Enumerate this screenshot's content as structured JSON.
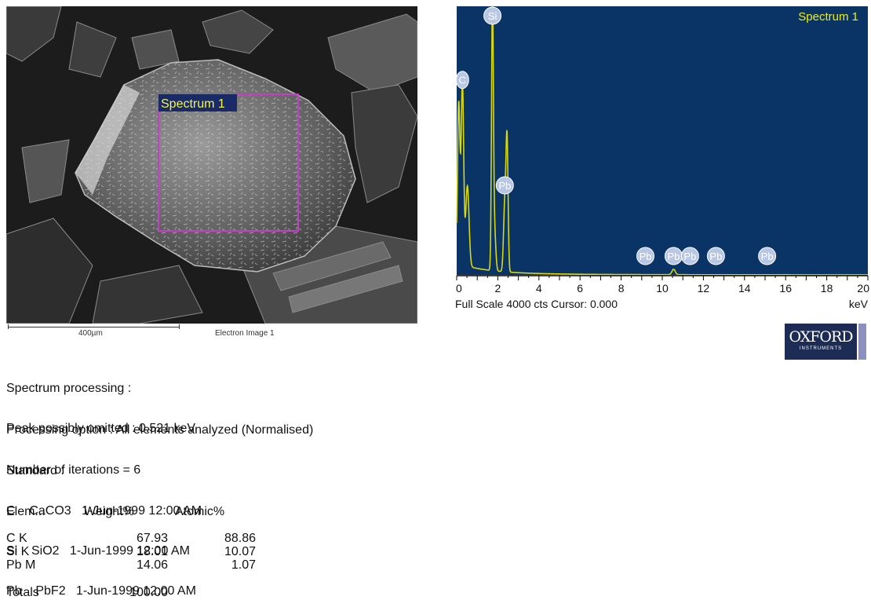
{
  "sem": {
    "box_label": "Spectrum 1",
    "scale_label": "400µm",
    "image_label": "Electron Image 1"
  },
  "chart_data": {
    "type": "line",
    "title": "Spectrum 1",
    "xlabel": "keV",
    "footer": "Full Scale 4000 cts Cursor: 0.000",
    "xlim": [
      0,
      20
    ],
    "ylim": [
      0,
      4000
    ],
    "x_ticks": [
      0,
      2,
      4,
      6,
      8,
      10,
      12,
      14,
      16,
      18,
      20
    ],
    "background_color": "#0a3366",
    "line_color": "#d8d80a",
    "label_color": "#f0f000",
    "peaks": [
      {
        "x": 0.1,
        "y": 2400,
        "w": 0.06
      },
      {
        "x": 0.28,
        "y": 2700,
        "w": 0.06
      },
      {
        "x": 0.52,
        "y": 1200,
        "w": 0.08
      },
      {
        "x": 1.74,
        "y": 3950,
        "w": 0.045
      },
      {
        "x": 1.84,
        "y": 600,
        "w": 0.06
      },
      {
        "x": 2.34,
        "y": 1000,
        "w": 0.06
      },
      {
        "x": 2.45,
        "y": 1900,
        "w": 0.05
      },
      {
        "x": 10.55,
        "y": 80,
        "w": 0.08
      }
    ],
    "peak_labels": [
      {
        "text": "C",
        "x": 0.28
      },
      {
        "text": "Si",
        "x": 1.74
      },
      {
        "text": "Pb",
        "x": 2.34
      },
      {
        "text": "Pb",
        "x": 9.18
      },
      {
        "text": "Pb",
        "x": 10.55
      },
      {
        "text": "Pb",
        "x": 11.35
      },
      {
        "text": "Pb",
        "x": 12.61
      },
      {
        "text": "Pb",
        "x": 15.1
      }
    ]
  },
  "logo": {
    "main": "OXFORD",
    "sub": "INSTRUMENTS"
  },
  "report": {
    "processing_title": "Spectrum processing :",
    "peak_omitted": "Peak possibly omitted : 0.521 keV",
    "option": "Processing option : All elements analyzed (Normalised)",
    "iterations": "Number of iterations = 6",
    "standard_title": "Standard :",
    "standards": [
      "C    CaCO3   1-Jun-1999 12:00 AM",
      "Si    SiO2   1-Jun-1999 12:00 AM",
      "Pb    PbF2   1-Jun-1999 12:00 AM"
    ],
    "table": {
      "headers": [
        "Elem...",
        "Weight%",
        "Atomic%"
      ],
      "rows": [
        [
          "C K",
          "67.93",
          "88.86"
        ],
        [
          "Si K",
          "18.01",
          "10.07"
        ],
        [
          "Pb M",
          "14.06",
          "1.07"
        ]
      ],
      "totals_label": "Totals",
      "totals_value": "100.00"
    }
  }
}
